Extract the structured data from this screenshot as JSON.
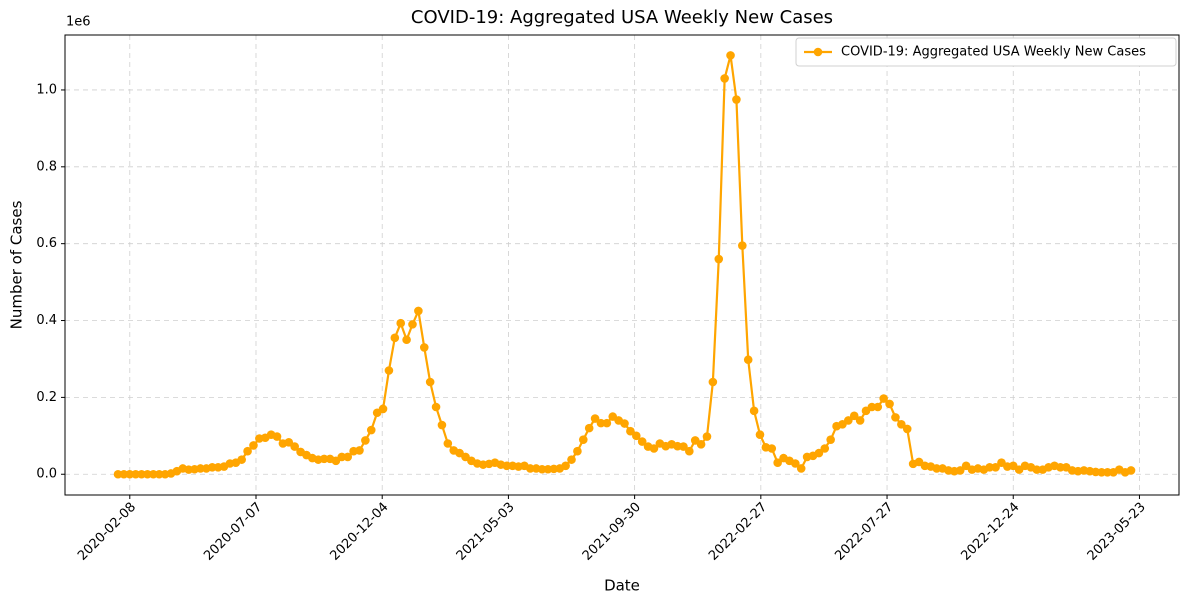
{
  "chart_data": {
    "type": "line",
    "title": "COVID-19: Aggregated USA Weekly New Cases",
    "x_label": "Date",
    "y_label": "Number of Cases",
    "y_offset_label": "1e6",
    "x": [
      "2020-01-25",
      "2020-02-01",
      "2020-02-08",
      "2020-02-15",
      "2020-02-22",
      "2020-02-29",
      "2020-03-07",
      "2020-03-14",
      "2020-03-21",
      "2020-03-28",
      "2020-04-04",
      "2020-04-11",
      "2020-04-18",
      "2020-04-25",
      "2020-05-02",
      "2020-05-09",
      "2020-05-16",
      "2020-05-23",
      "2020-05-30",
      "2020-06-06",
      "2020-06-13",
      "2020-06-20",
      "2020-06-27",
      "2020-07-04",
      "2020-07-11",
      "2020-07-18",
      "2020-07-25",
      "2020-08-01",
      "2020-08-08",
      "2020-08-15",
      "2020-08-22",
      "2020-08-29",
      "2020-09-05",
      "2020-09-12",
      "2020-09-19",
      "2020-09-26",
      "2020-10-03",
      "2020-10-10",
      "2020-10-17",
      "2020-10-24",
      "2020-10-31",
      "2020-11-07",
      "2020-11-14",
      "2020-11-21",
      "2020-11-28",
      "2020-12-05",
      "2020-12-12",
      "2020-12-19",
      "2020-12-26",
      "2021-01-02",
      "2021-01-09",
      "2021-01-16",
      "2021-01-23",
      "2021-01-30",
      "2021-02-06",
      "2021-02-13",
      "2021-02-20",
      "2021-02-27",
      "2021-03-06",
      "2021-03-13",
      "2021-03-20",
      "2021-03-27",
      "2021-04-03",
      "2021-04-10",
      "2021-04-17",
      "2021-04-24",
      "2021-05-01",
      "2021-05-08",
      "2021-05-15",
      "2021-05-22",
      "2021-05-29",
      "2021-06-05",
      "2021-06-12",
      "2021-06-19",
      "2021-06-26",
      "2021-07-03",
      "2021-07-10",
      "2021-07-17",
      "2021-07-24",
      "2021-07-31",
      "2021-08-07",
      "2021-08-14",
      "2021-08-21",
      "2021-08-28",
      "2021-09-04",
      "2021-09-11",
      "2021-09-18",
      "2021-09-25",
      "2021-10-02",
      "2021-10-09",
      "2021-10-16",
      "2021-10-23",
      "2021-10-30",
      "2021-11-06",
      "2021-11-13",
      "2021-11-20",
      "2021-11-27",
      "2021-12-04",
      "2021-12-11",
      "2021-12-18",
      "2021-12-25",
      "2022-01-01",
      "2022-01-08",
      "2022-01-15",
      "2022-01-22",
      "2022-01-29",
      "2022-02-05",
      "2022-02-12",
      "2022-02-19",
      "2022-02-26",
      "2022-03-05",
      "2022-03-12",
      "2022-03-19",
      "2022-03-26",
      "2022-04-02",
      "2022-04-09",
      "2022-04-16",
      "2022-04-23",
      "2022-04-30",
      "2022-05-07",
      "2022-05-14",
      "2022-05-21",
      "2022-05-28",
      "2022-06-04",
      "2022-06-11",
      "2022-06-18",
      "2022-06-25",
      "2022-07-02",
      "2022-07-09",
      "2022-07-16",
      "2022-07-23",
      "2022-07-30",
      "2022-08-06",
      "2022-08-13",
      "2022-08-20",
      "2022-08-27",
      "2022-09-03",
      "2022-09-10",
      "2022-09-17",
      "2022-09-24",
      "2022-10-01",
      "2022-10-08",
      "2022-10-15",
      "2022-10-22",
      "2022-10-29",
      "2022-11-05",
      "2022-11-12",
      "2022-11-19",
      "2022-11-26",
      "2022-12-03",
      "2022-12-10",
      "2022-12-17",
      "2022-12-24",
      "2022-12-31",
      "2023-01-07",
      "2023-01-14",
      "2023-01-21",
      "2023-01-28",
      "2023-02-04",
      "2023-02-11",
      "2023-02-18",
      "2023-02-25",
      "2023-03-04",
      "2023-03-11",
      "2023-03-18",
      "2023-03-25",
      "2023-04-01",
      "2023-04-08",
      "2023-04-15",
      "2023-04-22",
      "2023-04-29",
      "2023-05-06",
      "2023-05-13"
    ],
    "series": [
      {
        "name": "COVID-19: Aggregated USA Weekly New Cases",
        "color": "#FFA500",
        "values": [
          0,
          0,
          0,
          0,
          0,
          0,
          0,
          0,
          0,
          2000,
          8000,
          15000,
          12000,
          13000,
          15000,
          15000,
          18000,
          18000,
          20000,
          28000,
          30000,
          38000,
          60000,
          75000,
          93000,
          95000,
          103000,
          98000,
          80000,
          83000,
          72000,
          58000,
          50000,
          42000,
          38000,
          40000,
          40000,
          35000,
          45000,
          45000,
          60000,
          62000,
          88000,
          115000,
          160000,
          170000,
          270000,
          355000,
          393000,
          350000,
          390000,
          425000,
          330000,
          240000,
          175000,
          128000,
          80000,
          62000,
          55000,
          45000,
          35000,
          28000,
          25000,
          27000,
          30000,
          25000,
          22000,
          22000,
          20000,
          22000,
          15000,
          15000,
          13000,
          13000,
          14000,
          15000,
          22000,
          38000,
          60000,
          90000,
          120000,
          145000,
          133000,
          133000,
          150000,
          140000,
          132000,
          112000,
          100000,
          85000,
          72000,
          67000,
          80000,
          73000,
          78000,
          73000,
          72000,
          60000,
          88000,
          78000,
          98000,
          240000,
          560000,
          1030000,
          1090000,
          975000,
          595000,
          298000,
          165000,
          103000,
          70000,
          67000,
          30000,
          42000,
          35000,
          28000,
          15000,
          45000,
          48000,
          55000,
          67000,
          90000,
          125000,
          130000,
          140000,
          152000,
          140000,
          165000,
          175000,
          175000,
          197000,
          183000,
          148000,
          130000,
          118000,
          27000,
          32000,
          22000,
          20000,
          15000,
          15000,
          10000,
          8000,
          10000,
          22000,
          12000,
          15000,
          12000,
          18000,
          18000,
          30000,
          20000,
          22000,
          12000,
          22000,
          18000,
          12000,
          12000,
          18000,
          22000,
          18000,
          18000,
          10000,
          8000,
          10000,
          8000,
          6000,
          5000,
          5000,
          5000,
          12000,
          5000,
          10000
        ]
      }
    ],
    "xlim": [
      "2019-11-23",
      "2023-07-09"
    ],
    "xticks": [
      "2020-02-08",
      "2020-07-07",
      "2020-12-04",
      "2021-05-03",
      "2021-09-30",
      "2022-02-27",
      "2022-07-27",
      "2022-12-24",
      "2023-05-23"
    ],
    "ylim": [
      -54000,
      1143000
    ],
    "yticks": [
      {
        "value": 0,
        "label": "0.0"
      },
      {
        "value": 200000,
        "label": "0.2"
      },
      {
        "value": 400000,
        "label": "0.4"
      },
      {
        "value": 600000,
        "label": "0.6"
      },
      {
        "value": 800000,
        "label": "0.8"
      },
      {
        "value": 1000000,
        "label": "1.0"
      }
    ],
    "grid": true,
    "legend": "upper right"
  }
}
